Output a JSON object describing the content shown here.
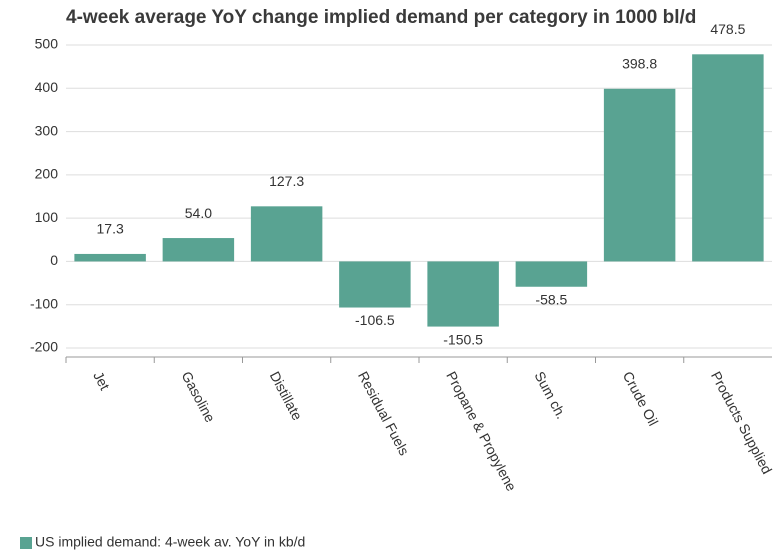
{
  "chart_data": {
    "type": "bar",
    "title": "4-week average YoY change implied demand per category in 1000 bl/d",
    "categories": [
      "Jet",
      "Gasoline",
      "Distillate",
      "Residual Fuels",
      "Propane & Propylene",
      "Sum ch.",
      "Crude Oil",
      "Products Supplied"
    ],
    "series": [
      {
        "name": "US implied demand: 4-week av. YoY in kb/d",
        "color": "#59a392",
        "values": [
          17.3,
          54.0,
          127.3,
          -106.5,
          -150.5,
          -58.5,
          398.8,
          478.5
        ],
        "value_labels": [
          "17.3",
          "54.0",
          "127.3",
          "-106.5",
          "-150.5",
          "-58.5",
          "398.8",
          "478.5"
        ]
      }
    ],
    "ylim": [
      -200,
      500
    ],
    "yticks": [
      -200,
      -100,
      0,
      100,
      200,
      300,
      400,
      500
    ],
    "grid": true,
    "legend": "bottom-left"
  }
}
